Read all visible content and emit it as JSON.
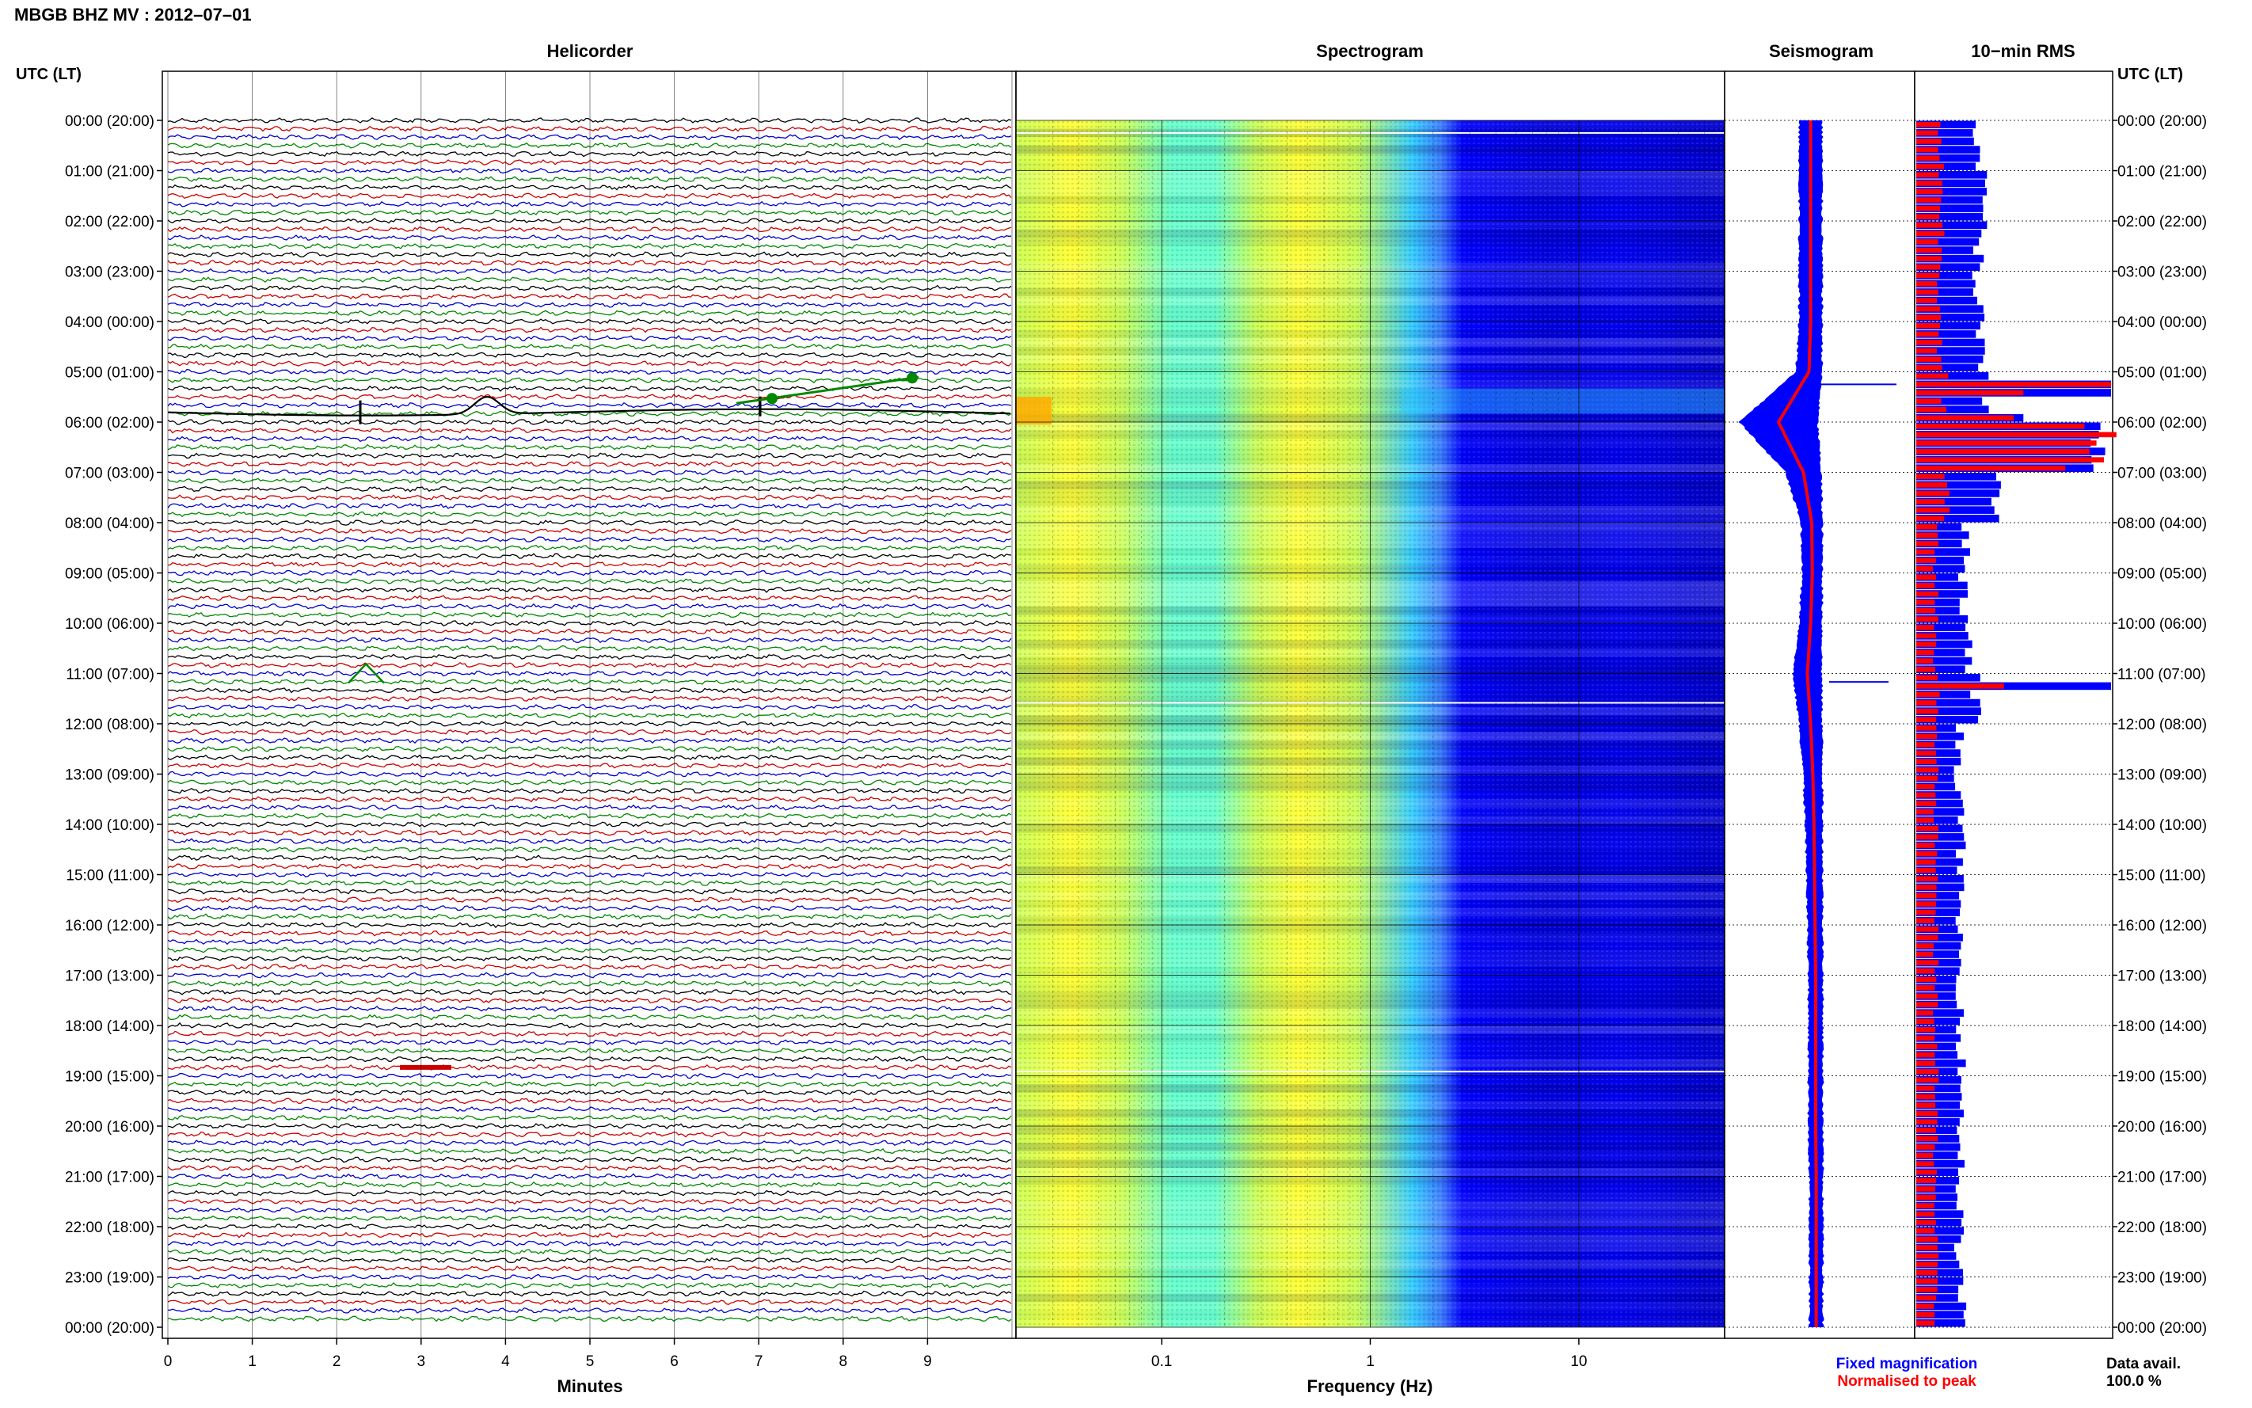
{
  "figure": {
    "title": "MBGB BHZ MV : 2012–07–01",
    "time_axis_label": "UTC (LT)",
    "legend": {
      "fixed_label": "Fixed magnification",
      "fixed_color": "#0000ff",
      "peak_label": "Normalised to peak",
      "peak_color": "#ff0000"
    },
    "data_avail_label": "Data avail.",
    "data_avail_value": "100.0 %"
  },
  "time_ticks": [
    "00:00 (20:00)",
    "01:00 (21:00)",
    "02:00 (22:00)",
    "03:00 (23:00)",
    "04:00 (00:00)",
    "05:00 (01:00)",
    "06:00 (02:00)",
    "07:00 (03:00)",
    "08:00 (04:00)",
    "09:00 (05:00)",
    "10:00 (06:00)",
    "11:00 (07:00)",
    "12:00 (08:00)",
    "13:00 (09:00)",
    "14:00 (10:00)",
    "15:00 (11:00)",
    "16:00 (12:00)",
    "17:00 (13:00)",
    "18:00 (14:00)",
    "19:00 (15:00)",
    "20:00 (16:00)",
    "21:00 (17:00)",
    "22:00 (18:00)",
    "23:00 (19:00)",
    "00:00 (20:00)"
  ],
  "chart_data": [
    {
      "type": "line",
      "panel": "Helicorder",
      "title": "Helicorder",
      "xlabel": "Minutes",
      "x_ticks": [
        "0",
        "1",
        "2",
        "3",
        "4",
        "5",
        "6",
        "7",
        "8",
        "9"
      ],
      "xlim": [
        0,
        10
      ],
      "rows_per_hour": 6,
      "trace_colors": [
        "#000000",
        "#cc0000",
        "#0000cc",
        "#008800"
      ],
      "events": [
        {
          "time": "05:20",
          "description_color": "#000000"
        },
        {
          "time": "05:30",
          "description_color": "#008800"
        },
        {
          "time": "11:00",
          "description_color": "#008800"
        },
        {
          "time": "18:50",
          "description_color": "#cc0000"
        }
      ]
    },
    {
      "type": "heatmap",
      "panel": "Spectrogram",
      "title": "Spectrogram",
      "xlabel": "Frequency (Hz)",
      "x_scale": "log",
      "xlim": [
        0.02,
        50
      ],
      "x_ticks": [
        "0.1",
        "1",
        "10"
      ],
      "colormap": [
        "#0000aa",
        "#0000ff",
        "#3a7dff",
        "#33ccff",
        "#66ffcc",
        "#ccff55",
        "#ffff33",
        "#ffaa00"
      ]
    },
    {
      "type": "line",
      "panel": "Seismogram",
      "title": "Seismogram",
      "series": [
        {
          "name": "Fixed magnification",
          "color": "#0000ff"
        },
        {
          "name": "Normalised to peak",
          "color": "#ff0000"
        }
      ],
      "hourly_level": [
        0.12,
        0.12,
        0.12,
        0.12,
        0.12,
        0.15,
        0.7,
        0.25,
        0.1,
        0.09,
        0.12,
        0.18,
        0.12,
        0.08,
        0.06,
        0.05,
        0.04,
        0.03,
        0.03,
        0.03,
        0.03,
        0.02,
        0.02,
        0.02
      ]
    },
    {
      "type": "bar",
      "panel": "10-min RMS",
      "title": "10−min RMS",
      "series": [
        {
          "name": "Fixed magnification",
          "color": "#0000ff"
        },
        {
          "name": "Normalised to peak",
          "color": "#ff0000"
        }
      ],
      "blue_hourly": [
        0.33,
        0.33,
        0.33,
        0.32,
        0.32,
        0.35,
        0.95,
        0.4,
        0.25,
        0.24,
        0.26,
        0.3,
        0.22,
        0.22,
        0.23,
        0.22,
        0.22,
        0.23,
        0.23,
        0.23,
        0.23,
        0.22,
        0.22,
        0.23
      ],
      "red_hourly": [
        0.13,
        0.13,
        0.13,
        0.12,
        0.12,
        0.15,
        0.9,
        0.15,
        0.1,
        0.1,
        0.1,
        0.12,
        0.1,
        0.1,
        0.1,
        0.1,
        0.1,
        0.1,
        0.1,
        0.1,
        0.1,
        0.1,
        0.1,
        0.1
      ],
      "spikes": [
        {
          "time": "05:10",
          "blue": 1.0,
          "red": 1.0
        },
        {
          "time": "05:20",
          "blue": 1.0,
          "red": 0.55
        },
        {
          "time": "05:50",
          "blue": 0.55,
          "red": 0.5
        },
        {
          "time": "11:10",
          "blue": 1.0,
          "red": 0.45
        }
      ]
    }
  ]
}
